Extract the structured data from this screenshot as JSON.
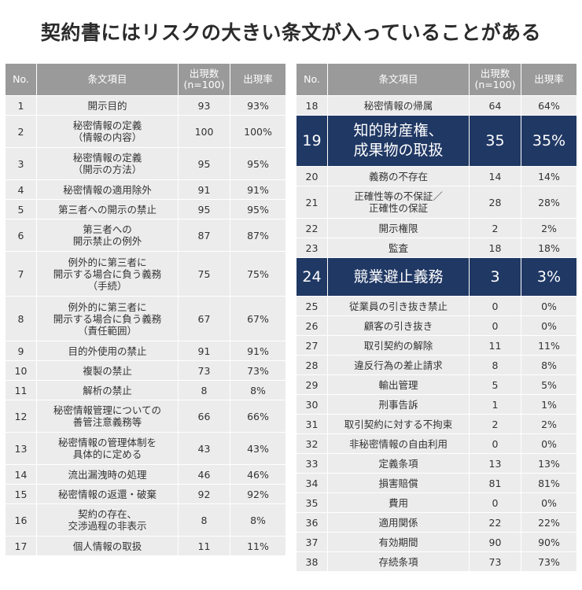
{
  "title": "契約書にはリスクの大きい条文が入っていることがある",
  "headers": {
    "no": "No.",
    "item": "条文項目",
    "count": "出現数\n(n=100)",
    "rate": "出現率"
  },
  "left_rows": [
    {
      "no": "1",
      "item": "開示目的",
      "count": "93",
      "rate": "93%"
    },
    {
      "no": "2",
      "item": "秘密情報の定義\n（情報の内容）",
      "count": "100",
      "rate": "100%"
    },
    {
      "no": "3",
      "item": "秘密情報の定義\n（開示の方法）",
      "count": "95",
      "rate": "95%"
    },
    {
      "no": "4",
      "item": "秘密情報の適用除外",
      "count": "91",
      "rate": "91%"
    },
    {
      "no": "5",
      "item": "第三者への開示の禁止",
      "count": "95",
      "rate": "95%"
    },
    {
      "no": "6",
      "item": "第三者への\n開示禁止の例外",
      "count": "87",
      "rate": "87%"
    },
    {
      "no": "7",
      "item": "例外的に第三者に\n開示する場合に負う義務\n（手続）",
      "count": "75",
      "rate": "75%"
    },
    {
      "no": "8",
      "item": "例外的に第三者に\n開示する場合に負う義務\n（責任範囲）",
      "count": "67",
      "rate": "67%"
    },
    {
      "no": "9",
      "item": "目的外使用の禁止",
      "count": "91",
      "rate": "91%"
    },
    {
      "no": "10",
      "item": "複製の禁止",
      "count": "73",
      "rate": "73%"
    },
    {
      "no": "11",
      "item": "解析の禁止",
      "count": "8",
      "rate": "8%"
    },
    {
      "no": "12",
      "item": "秘密情報管理についての\n善管注意義務等",
      "count": "66",
      "rate": "66%"
    },
    {
      "no": "13",
      "item": "秘密情報の管理体制を\n具体的に定める",
      "count": "43",
      "rate": "43%"
    },
    {
      "no": "14",
      "item": "流出漏洩時の処理",
      "count": "46",
      "rate": "46%"
    },
    {
      "no": "15",
      "item": "秘密情報の返還・破棄",
      "count": "92",
      "rate": "92%"
    },
    {
      "no": "16",
      "item": "契約の存在、\n交渉過程の非表示",
      "count": "8",
      "rate": "8%"
    },
    {
      "no": "17",
      "item": "個人情報の取扱",
      "count": "11",
      "rate": "11%"
    }
  ],
  "right_rows": [
    {
      "no": "18",
      "item": "秘密情報の帰属",
      "count": "64",
      "rate": "64%"
    },
    {
      "no": "19",
      "item": "知的財産権、\n成果物の取扱",
      "count": "35",
      "rate": "35%",
      "highlight": true
    },
    {
      "no": "20",
      "item": "義務の不存在",
      "count": "14",
      "rate": "14%"
    },
    {
      "no": "21",
      "item": "正確性等の不保証／\n正確性の保証",
      "count": "28",
      "rate": "28%"
    },
    {
      "no": "22",
      "item": "開示権限",
      "count": "2",
      "rate": "2%"
    },
    {
      "no": "23",
      "item": "監査",
      "count": "18",
      "rate": "18%"
    },
    {
      "no": "24",
      "item": "競業避止義務",
      "count": "3",
      "rate": "3%",
      "highlight": true
    },
    {
      "no": "25",
      "item": "従業員の引き抜き禁止",
      "count": "0",
      "rate": "0%"
    },
    {
      "no": "26",
      "item": "顧客の引き抜き",
      "count": "0",
      "rate": "0%"
    },
    {
      "no": "27",
      "item": "取引契約の解除",
      "count": "11",
      "rate": "11%"
    },
    {
      "no": "28",
      "item": "違反行為の差止請求",
      "count": "8",
      "rate": "8%"
    },
    {
      "no": "29",
      "item": "輸出管理",
      "count": "5",
      "rate": "5%"
    },
    {
      "no": "30",
      "item": "刑事告訴",
      "count": "1",
      "rate": "1%"
    },
    {
      "no": "31",
      "item": "取引契約に対する不拘束",
      "count": "2",
      "rate": "2%"
    },
    {
      "no": "32",
      "item": "非秘密情報の自由利用",
      "count": "0",
      "rate": "0%"
    },
    {
      "no": "33",
      "item": "定義条項",
      "count": "13",
      "rate": "13%"
    },
    {
      "no": "34",
      "item": "損害賠償",
      "count": "81",
      "rate": "81%"
    },
    {
      "no": "35",
      "item": "費用",
      "count": "0",
      "rate": "0%"
    },
    {
      "no": "36",
      "item": "適用関係",
      "count": "22",
      "rate": "22%"
    },
    {
      "no": "37",
      "item": "有効期間",
      "count": "90",
      "rate": "90%"
    },
    {
      "no": "38",
      "item": "存続条項",
      "count": "73",
      "rate": "73%"
    }
  ],
  "colors": {
    "header_bg": "#9a9a9a",
    "row_bg": "#ececec",
    "highlight_bg": "#203864"
  }
}
